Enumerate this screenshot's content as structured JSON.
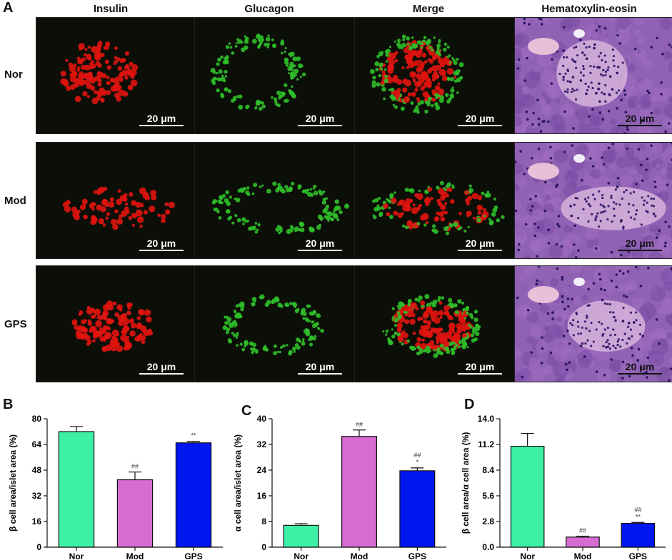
{
  "panel_letters": {
    "a": "A",
    "b": "B",
    "c": "C",
    "d": "D"
  },
  "columns": [
    "Insulin",
    "Glucagon",
    "Merge",
    "Hematoxylin-eosin"
  ],
  "rows": [
    "Nor",
    "Mod",
    "GPS"
  ],
  "scale_bar": "20 μm",
  "colors": {
    "nor": "#3ef0a6",
    "mod": "#d66bd0",
    "gps": "#0016f0",
    "insulin": "#e0140f",
    "glucagon": "#2fbf2a",
    "he_bg": "#8f62b4"
  },
  "chart_data": [
    {
      "type": "bar",
      "categories": [
        "Nor",
        "Mod",
        "GPS"
      ],
      "values": [
        72,
        42,
        65
      ],
      "errors": [
        3.2,
        4.8,
        0.9
      ],
      "annotations": [
        [
          "",
          ""
        ],
        [
          "",
          "##"
        ],
        [
          "",
          "**"
        ]
      ],
      "ylabel": "β cell area/islet area (%)",
      "ylim": [
        0,
        80
      ],
      "yticks": [
        "0",
        "16",
        "32",
        "48",
        "64",
        "80"
      ]
    },
    {
      "type": "bar",
      "categories": [
        "Nor",
        "Mod",
        "GPS"
      ],
      "values": [
        6.8,
        34.5,
        23.8
      ],
      "errors": [
        0.5,
        2.0,
        0.9
      ],
      "annotations": [
        [
          "",
          ""
        ],
        [
          "",
          "##"
        ],
        [
          "*",
          "##"
        ]
      ],
      "ylabel": "α cell area/islet area (%)",
      "ylim": [
        0,
        40
      ],
      "yticks": [
        "0",
        "8",
        "16",
        "24",
        "32",
        "40"
      ]
    },
    {
      "type": "bar",
      "categories": [
        "Nor",
        "Mod",
        "GPS"
      ],
      "values": [
        11.0,
        1.1,
        2.6
      ],
      "errors": [
        1.4,
        0.1,
        0.1
      ],
      "annotations": [
        [
          "",
          ""
        ],
        [
          "",
          "##"
        ],
        [
          "**",
          "##"
        ]
      ],
      "ylabel": "β cell area/α cell area (%)",
      "ylim": [
        0,
        14
      ],
      "yticks": [
        "0.0",
        "2.8",
        "5.6",
        "8.4",
        "11.2",
        "14.0"
      ]
    }
  ]
}
